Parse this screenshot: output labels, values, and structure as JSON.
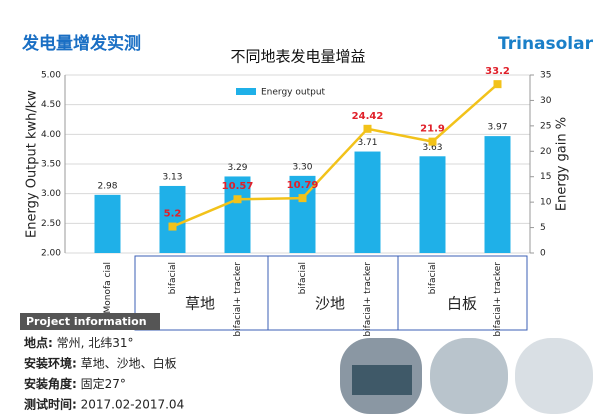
{
  "header": {
    "title": "发电量增发实测",
    "logo": "Trinasolar"
  },
  "chart_data": {
    "type": "bar",
    "title": "不同地表发电量增益",
    "y_label": "Energy Output  kwh/kw",
    "y2_label": "Energy  gain %",
    "categories": [
      "Monofa cial",
      "bifacial",
      "bifacial+ tracker",
      "bifacial",
      "bifacial+ tracker",
      "bifacial",
      "bifacial+ tracker"
    ],
    "groups": [
      "草地",
      "沙地",
      "白板"
    ],
    "series": [
      {
        "name": "Energy output",
        "type": "bar",
        "color": "#1fb0e8",
        "values": [
          2.98,
          3.13,
          3.29,
          3.3,
          3.71,
          3.63,
          3.97
        ],
        "value_labels": [
          "2.98",
          "3.13",
          "3.29",
          "3.30",
          "3.71",
          "3.63",
          "3.97"
        ]
      },
      {
        "type": "line",
        "axis": "y2",
        "color": "#f2c21a",
        "label_color": "#e0202a",
        "values": [
          null,
          5.2,
          10.57,
          10.79,
          24.42,
          21.9,
          33.2
        ]
      }
    ],
    "ylim": [
      2,
      5
    ],
    "yticks": [
      {
        "value": 2,
        "label": "2.00"
      },
      {
        "value": 2.5,
        "label": "2.50"
      },
      {
        "value": 3,
        "label": "3.00"
      },
      {
        "value": 3.5,
        "label": "3.50"
      },
      {
        "value": 4,
        "label": "4.00"
      },
      {
        "value": 4.5,
        "label": "4.50"
      },
      {
        "value": 5,
        "label": "5.00"
      }
    ],
    "y2lim": [
      0,
      35
    ],
    "y2ticks": [
      0,
      5,
      10,
      15,
      20,
      25,
      30,
      35
    ],
    "legend": "top"
  },
  "info": {
    "title": "Project information",
    "rows": [
      {
        "label": "地点:",
        "value": " 常州, 北纬31°"
      },
      {
        "label": "安装环境:",
        "value": " 草地、沙地、白板"
      },
      {
        "label": "安装角度:",
        "value": " 固定27°"
      },
      {
        "label": "测试时间:",
        "value": " 2017.02-2017.04"
      }
    ]
  }
}
